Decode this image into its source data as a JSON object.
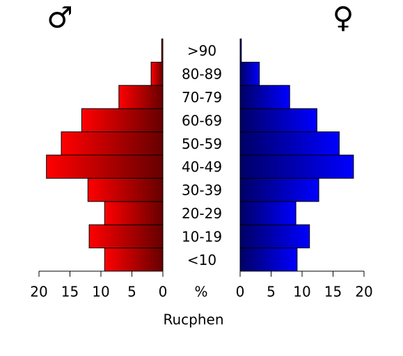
{
  "chart_data": {
    "type": "pyramid",
    "categories": [
      "<10",
      "10-19",
      "20-29",
      "30-39",
      "40-49",
      "50-59",
      "60-69",
      "70-79",
      "80-89",
      ">90"
    ],
    "series": [
      {
        "name": "♂",
        "color": "#ff0000",
        "values": [
          9.4,
          11.9,
          9.4,
          12.1,
          18.8,
          16.4,
          13.1,
          7.1,
          1.9,
          0.2
        ]
      },
      {
        "name": "♀",
        "color": "#0000ff",
        "values": [
          9.2,
          11.2,
          9.0,
          12.7,
          18.3,
          16.0,
          12.4,
          8.0,
          3.1,
          0.2
        ]
      }
    ],
    "xlim": [
      0,
      20
    ],
    "xticks": [
      0,
      5,
      10,
      15,
      20
    ],
    "unit_label": "%",
    "xlabel": "Rucphen"
  }
}
